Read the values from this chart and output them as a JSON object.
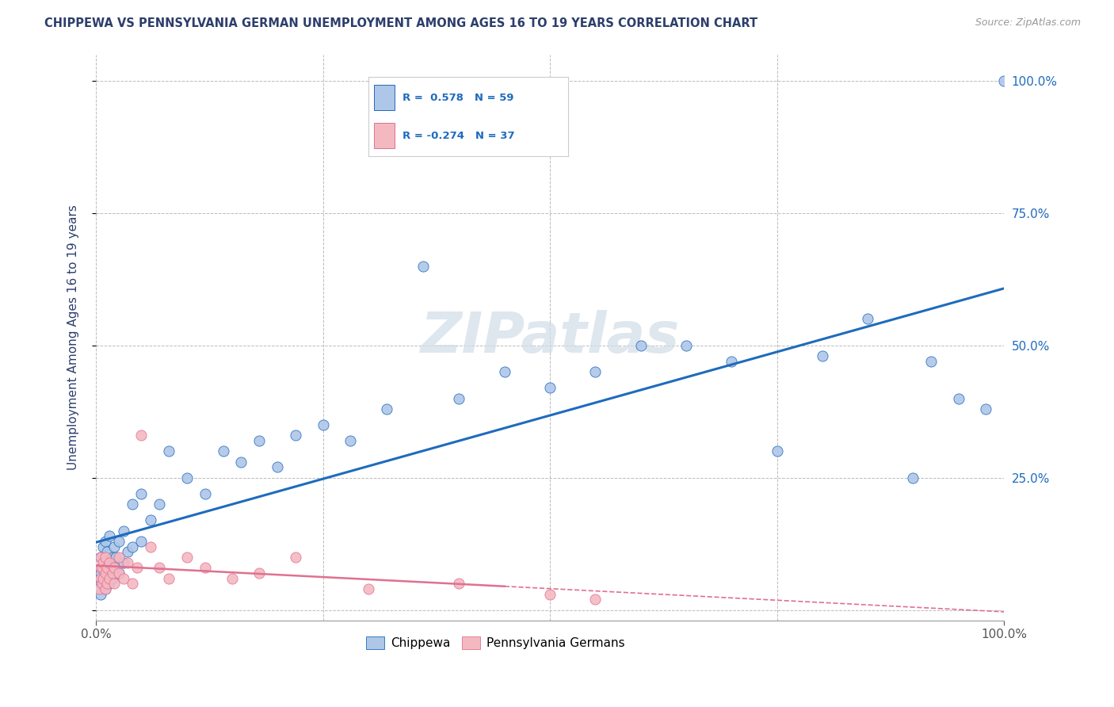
{
  "title": "CHIPPEWA VS PENNSYLVANIA GERMAN UNEMPLOYMENT AMONG AGES 16 TO 19 YEARS CORRELATION CHART",
  "source": "Source: ZipAtlas.com",
  "ylabel": "Unemployment Among Ages 16 to 19 years",
  "xlim": [
    0.0,
    1.0
  ],
  "ylim": [
    -0.02,
    1.05
  ],
  "chippewa_R": 0.578,
  "chippewa_N": 59,
  "pennger_R": -0.274,
  "pennger_N": 37,
  "chippewa_color": "#aec6e8",
  "pennger_color": "#f4b8c1",
  "chippewa_line_color": "#1f6bbd",
  "pennger_line_color": "#e07090",
  "background_color": "#ffffff",
  "grid_color": "#bbbbbb",
  "title_color": "#2c3e6b",
  "legend_label1": "Chippewa",
  "legend_label2": "Pennsylvania Germans",
  "chippewa_x": [
    0.005,
    0.005,
    0.005,
    0.005,
    0.008,
    0.008,
    0.008,
    0.01,
    0.01,
    0.01,
    0.01,
    0.012,
    0.012,
    0.015,
    0.015,
    0.015,
    0.018,
    0.018,
    0.02,
    0.02,
    0.022,
    0.025,
    0.025,
    0.03,
    0.03,
    0.035,
    0.04,
    0.04,
    0.05,
    0.05,
    0.06,
    0.07,
    0.08,
    0.1,
    0.12,
    0.14,
    0.16,
    0.18,
    0.2,
    0.22,
    0.25,
    0.28,
    0.32,
    0.36,
    0.4,
    0.45,
    0.5,
    0.55,
    0.6,
    0.65,
    0.7,
    0.75,
    0.8,
    0.85,
    0.9,
    0.92,
    0.95,
    0.98,
    1.0
  ],
  "chippewa_y": [
    0.03,
    0.05,
    0.07,
    0.1,
    0.05,
    0.08,
    0.12,
    0.04,
    0.06,
    0.09,
    0.13,
    0.07,
    0.11,
    0.05,
    0.09,
    0.14,
    0.06,
    0.1,
    0.08,
    0.12,
    0.1,
    0.07,
    0.13,
    0.09,
    0.15,
    0.11,
    0.12,
    0.2,
    0.13,
    0.22,
    0.17,
    0.2,
    0.3,
    0.25,
    0.22,
    0.3,
    0.28,
    0.32,
    0.27,
    0.33,
    0.35,
    0.32,
    0.38,
    0.65,
    0.4,
    0.45,
    0.42,
    0.45,
    0.5,
    0.5,
    0.47,
    0.3,
    0.48,
    0.55,
    0.25,
    0.47,
    0.4,
    0.38,
    1.0
  ],
  "pennger_x": [
    0.003,
    0.005,
    0.005,
    0.005,
    0.007,
    0.007,
    0.008,
    0.008,
    0.01,
    0.01,
    0.01,
    0.012,
    0.012,
    0.015,
    0.015,
    0.018,
    0.02,
    0.02,
    0.025,
    0.025,
    0.03,
    0.035,
    0.04,
    0.045,
    0.05,
    0.06,
    0.07,
    0.08,
    0.1,
    0.12,
    0.15,
    0.18,
    0.22,
    0.3,
    0.4,
    0.5,
    0.55
  ],
  "pennger_y": [
    0.04,
    0.06,
    0.08,
    0.1,
    0.05,
    0.08,
    0.06,
    0.09,
    0.04,
    0.07,
    0.1,
    0.05,
    0.08,
    0.06,
    0.09,
    0.07,
    0.05,
    0.08,
    0.1,
    0.07,
    0.06,
    0.09,
    0.05,
    0.08,
    0.33,
    0.12,
    0.08,
    0.06,
    0.1,
    0.08,
    0.06,
    0.07,
    0.1,
    0.04,
    0.05,
    0.03,
    0.02
  ],
  "ytick_positions": [
    0.0,
    0.25,
    0.5,
    0.75,
    1.0
  ],
  "ytick_labels": [
    "",
    "25.0%",
    "50.0%",
    "75.0%",
    "100.0%"
  ],
  "xtick_positions": [
    0.0,
    1.0
  ],
  "xtick_labels": [
    "0.0%",
    "100.0%"
  ],
  "watermark": "ZIPatlas",
  "watermark_color": "#d0dce8"
}
